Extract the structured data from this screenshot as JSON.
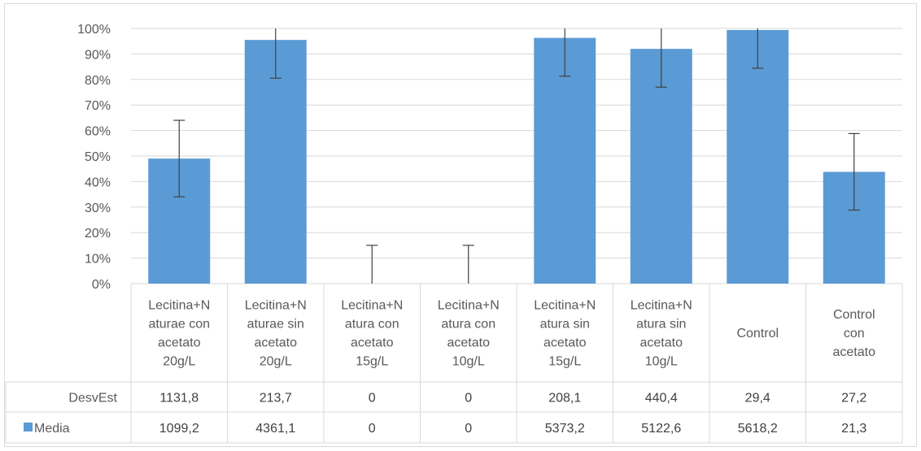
{
  "colors": {
    "bar": "#5b9bd5",
    "grid": "#d9d9d9",
    "error_bar": "#404040",
    "text": "#595959"
  },
  "chart_data": {
    "type": "bar",
    "ylim": [
      0,
      1
    ],
    "yticks": [
      0,
      0.1,
      0.2,
      0.3,
      0.4,
      0.5,
      0.6,
      0.7,
      0.8,
      0.9,
      1.0
    ],
    "ytick_labels": [
      "0%",
      "10%",
      "20%",
      "30%",
      "40%",
      "50%",
      "60%",
      "70%",
      "80%",
      "90%",
      "100%"
    ],
    "grid": true,
    "categories": [
      [
        "Lecitina+N",
        "aturae con",
        "acetato",
        "20g/L"
      ],
      [
        "Lecitina+N",
        "aturae sin",
        "acetato",
        "20g/L"
      ],
      [
        "Lecitina+N",
        "atura con",
        "acetato",
        "15g/L"
      ],
      [
        "Lecitina+N",
        "atura con",
        "acetato",
        "10g/L"
      ],
      [
        "Lecitina+N",
        "atura sin",
        "acetato",
        "15g/L"
      ],
      [
        "Lecitina+N",
        "atura sin",
        "acetato",
        "10g/L"
      ],
      [
        "Control"
      ],
      [
        "Control",
        "con",
        "acetato"
      ]
    ],
    "bar_values": [
      0.49,
      0.955,
      0,
      0,
      0.963,
      0.92,
      0.994,
      0.438
    ],
    "error_bar": 0.15,
    "table": {
      "rows": [
        {
          "label": "DesvEst",
          "legend_key": false,
          "values": [
            "1131,8",
            "213,7",
            "0",
            "0",
            "208,1",
            "440,4",
            "29,4",
            "27,2"
          ]
        },
        {
          "label": "Media",
          "legend_key": true,
          "values": [
            "1099,2",
            "4361,1",
            "0",
            "0",
            "5373,2",
            "5122,6",
            "5618,2",
            "21,3"
          ]
        }
      ]
    }
  }
}
